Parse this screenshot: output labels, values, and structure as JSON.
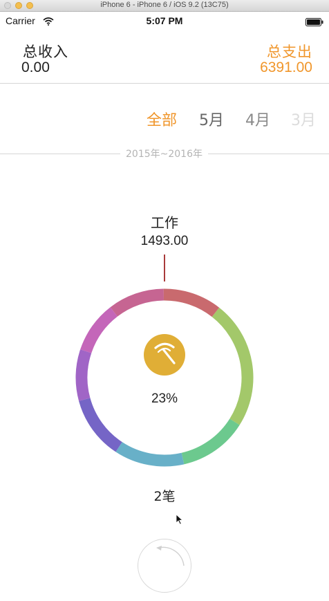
{
  "simulator": {
    "title": "iPhone 6 - iPhone 6 / iOS 9.2 (13C75)"
  },
  "status_bar": {
    "carrier": "Carrier",
    "time": "5:07 PM",
    "icons": [
      "wifi-icon",
      "battery-icon"
    ]
  },
  "summary": {
    "income_label": "总收入",
    "income_value": "0.00",
    "expense_label": "总支出",
    "expense_value": "6391.00",
    "accent_color": "#f0962b"
  },
  "tabs": [
    {
      "label": "全部",
      "selected": true
    },
    {
      "label": "5月",
      "selected": false
    },
    {
      "label": "4月",
      "selected": false
    },
    {
      "label": "3月",
      "selected": false
    }
  ],
  "year_range": "2015年~2016年",
  "selected_category": {
    "name": "工作",
    "amount": "1493.00",
    "icon": "pickaxe-icon",
    "icon_color": "#e0ae36",
    "percent": "23%",
    "count": "2笔"
  },
  "donut_segments": [
    {
      "share": 0.234,
      "color": "#a3c86a"
    },
    {
      "share": 0.125,
      "color": "#6cc98e"
    },
    {
      "share": 0.128,
      "color": "#68b0c8"
    },
    {
      "share": 0.115,
      "color": "#7565c6"
    },
    {
      "share": 0.094,
      "color": "#a065c6"
    },
    {
      "share": 0.094,
      "color": "#c466b9"
    },
    {
      "share": 0.103,
      "color": "#c66592"
    },
    {
      "share": 0.107,
      "color": "#c96a6e"
    }
  ],
  "donut_start_angle_deg": -52,
  "controls": {
    "rotate_icon": "rotate-icon"
  }
}
